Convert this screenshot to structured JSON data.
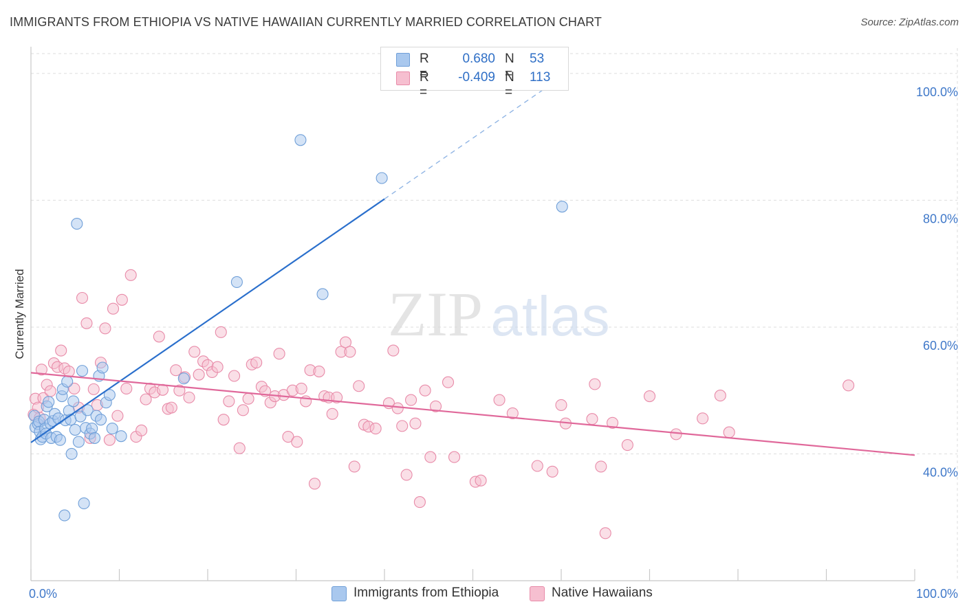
{
  "header": {
    "title": "IMMIGRANTS FROM ETHIOPIA VS NATIVE HAWAIIAN CURRENTLY MARRIED CORRELATION CHART",
    "source": "Source: ZipAtlas.com"
  },
  "watermark": {
    "zip": "ZIP",
    "atlas": "atlas"
  },
  "legend": {
    "r_label": "R =",
    "n_label": "N =",
    "series1": {
      "r": "0.680",
      "n": "53"
    },
    "series2": {
      "r": "-0.409",
      "n": "113"
    }
  },
  "colors": {
    "blue_fill": "#a9c8ee",
    "blue_stroke": "#6f9fd8",
    "blue_line": "#2a6fcc",
    "pink_fill": "#f6bfd0",
    "pink_stroke": "#e88aa8",
    "pink_line": "#e0689a",
    "tick_label": "#3f78c9",
    "grid": "#dddddd"
  },
  "chart_data": {
    "type": "scatter",
    "title": "IMMIGRANTS FROM ETHIOPIA VS NATIVE HAWAIIAN CURRENTLY MARRIED CORRELATION CHART",
    "xlabel": "",
    "ylabel": "Currently Married",
    "xlim": [
      0,
      100
    ],
    "ylim": [
      20,
      104
    ],
    "x_tick_labels": [
      "0.0%",
      "100.0%"
    ],
    "y_ticks": [
      40,
      60,
      80,
      100
    ],
    "y_tick_labels": [
      "40.0%",
      "60.0%",
      "80.0%",
      "100.0%"
    ],
    "legend_position": "top-center",
    "series": [
      {
        "name": "Immigrants from Ethiopia",
        "r": 0.68,
        "n": 53,
        "trend": {
          "x0": 0,
          "y0": 41.8,
          "x1": 40,
          "y1": 80.2,
          "dashed_to_x": 60
        },
        "points": [
          [
            0.4,
            46
          ],
          [
            0.5,
            44.2
          ],
          [
            0.8,
            44.7
          ],
          [
            0.9,
            45.1
          ],
          [
            1.0,
            43.5
          ],
          [
            1.1,
            42.3
          ],
          [
            1.3,
            42.7
          ],
          [
            1.5,
            45.4
          ],
          [
            1.6,
            44.0
          ],
          [
            1.7,
            43.2
          ],
          [
            1.8,
            47.5
          ],
          [
            2.0,
            48.2
          ],
          [
            2.2,
            44.8
          ],
          [
            2.3,
            42.5
          ],
          [
            2.5,
            45.2
          ],
          [
            2.7,
            46.3
          ],
          [
            2.9,
            42.7
          ],
          [
            3.1,
            45.6
          ],
          [
            3.3,
            42.2
          ],
          [
            3.5,
            49.1
          ],
          [
            3.6,
            50.2
          ],
          [
            3.8,
            30.3
          ],
          [
            3.9,
            45.3
          ],
          [
            4.1,
            51.4
          ],
          [
            4.3,
            46.8
          ],
          [
            4.5,
            45.4
          ],
          [
            4.6,
            40.0
          ],
          [
            4.8,
            48.3
          ],
          [
            5.0,
            43.8
          ],
          [
            5.2,
            76.3
          ],
          [
            5.4,
            41.9
          ],
          [
            5.6,
            45.9
          ],
          [
            5.8,
            53.1
          ],
          [
            6.0,
            32.2
          ],
          [
            6.2,
            44.1
          ],
          [
            6.4,
            46.9
          ],
          [
            6.7,
            43.2
          ],
          [
            6.9,
            44.0
          ],
          [
            7.2,
            42.5
          ],
          [
            7.4,
            46.0
          ],
          [
            7.7,
            52.3
          ],
          [
            7.9,
            45.4
          ],
          [
            8.1,
            53.6
          ],
          [
            8.5,
            48.1
          ],
          [
            8.9,
            49.3
          ],
          [
            9.2,
            44.0
          ],
          [
            10.2,
            42.8
          ],
          [
            17.3,
            51.9
          ],
          [
            23.3,
            67.1
          ],
          [
            30.5,
            89.5
          ],
          [
            33.0,
            65.2
          ],
          [
            39.7,
            83.5
          ],
          [
            60.1,
            79.0
          ]
        ]
      },
      {
        "name": "Native Hawaiians",
        "r": -0.409,
        "n": 113,
        "trend": {
          "x0": 0,
          "y0": 52.8,
          "x1": 100,
          "y1": 39.8
        },
        "points": [
          [
            0.3,
            46.2
          ],
          [
            0.5,
            48.7
          ],
          [
            0.8,
            47.3
          ],
          [
            1.0,
            45.7
          ],
          [
            1.2,
            53.3
          ],
          [
            1.4,
            48.8
          ],
          [
            1.8,
            50.9
          ],
          [
            2.2,
            49.9
          ],
          [
            2.6,
            54.3
          ],
          [
            3.0,
            53.7
          ],
          [
            3.4,
            56.3
          ],
          [
            3.8,
            53.5
          ],
          [
            4.3,
            53.0
          ],
          [
            4.9,
            50.3
          ],
          [
            5.4,
            47.3
          ],
          [
            5.8,
            64.6
          ],
          [
            6.3,
            60.6
          ],
          [
            6.7,
            42.5
          ],
          [
            7.1,
            50.2
          ],
          [
            7.5,
            47.7
          ],
          [
            7.9,
            54.4
          ],
          [
            8.4,
            59.8
          ],
          [
            8.9,
            42.2
          ],
          [
            9.3,
            62.9
          ],
          [
            9.8,
            46.0
          ],
          [
            10.3,
            64.3
          ],
          [
            10.8,
            50.3
          ],
          [
            11.3,
            68.2
          ],
          [
            11.9,
            42.7
          ],
          [
            12.5,
            43.7
          ],
          [
            13.0,
            48.6
          ],
          [
            13.5,
            50.3
          ],
          [
            14.0,
            49.7
          ],
          [
            14.5,
            58.5
          ],
          [
            14.9,
            50.1
          ],
          [
            15.5,
            47.1
          ],
          [
            15.9,
            47.3
          ],
          [
            16.4,
            53.2
          ],
          [
            16.8,
            50.0
          ],
          [
            17.4,
            52.1
          ],
          [
            17.9,
            48.9
          ],
          [
            18.5,
            56.1
          ],
          [
            19.0,
            52.5
          ],
          [
            19.5,
            54.6
          ],
          [
            20.0,
            54.0
          ],
          [
            20.5,
            52.9
          ],
          [
            21.1,
            53.7
          ],
          [
            21.5,
            59.2
          ],
          [
            21.8,
            45.4
          ],
          [
            22.4,
            48.3
          ],
          [
            23.0,
            52.3
          ],
          [
            23.6,
            40.9
          ],
          [
            24.0,
            46.9
          ],
          [
            24.6,
            48.7
          ],
          [
            25.0,
            54.1
          ],
          [
            25.5,
            54.4
          ],
          [
            26.1,
            50.6
          ],
          [
            26.5,
            49.9
          ],
          [
            27.1,
            48.1
          ],
          [
            27.6,
            49.1
          ],
          [
            28.1,
            55.8
          ],
          [
            28.6,
            49.3
          ],
          [
            29.1,
            42.7
          ],
          [
            29.6,
            50.0
          ],
          [
            30.1,
            41.9
          ],
          [
            30.6,
            50.3
          ],
          [
            31.1,
            48.3
          ],
          [
            31.6,
            53.2
          ],
          [
            32.1,
            35.3
          ],
          [
            32.6,
            53.0
          ],
          [
            33.2,
            49.1
          ],
          [
            33.7,
            48.9
          ],
          [
            34.1,
            46.3
          ],
          [
            34.6,
            48.9
          ],
          [
            35.1,
            56.1
          ],
          [
            35.6,
            57.6
          ],
          [
            36.1,
            56.1
          ],
          [
            36.6,
            38.0
          ],
          [
            37.1,
            50.7
          ],
          [
            37.7,
            44.6
          ],
          [
            38.2,
            44.3
          ],
          [
            39.0,
            44.0
          ],
          [
            40.5,
            48.0
          ],
          [
            41.0,
            56.3
          ],
          [
            41.5,
            47.2
          ],
          [
            42.0,
            44.4
          ],
          [
            42.5,
            36.7
          ],
          [
            43.0,
            48.5
          ],
          [
            43.5,
            44.8
          ],
          [
            44.0,
            32.4
          ],
          [
            44.6,
            50.0
          ],
          [
            45.2,
            39.5
          ],
          [
            45.8,
            47.5
          ],
          [
            47.2,
            51.3
          ],
          [
            47.9,
            39.5
          ],
          [
            50.3,
            35.6
          ],
          [
            50.9,
            35.8
          ],
          [
            53.0,
            48.5
          ],
          [
            54.5,
            46.4
          ],
          [
            57.3,
            38.1
          ],
          [
            59.0,
            37.2
          ],
          [
            60.0,
            47.7
          ],
          [
            60.5,
            44.8
          ],
          [
            63.5,
            45.5
          ],
          [
            63.8,
            51.0
          ],
          [
            64.5,
            38.0
          ],
          [
            65.0,
            27.5
          ],
          [
            65.8,
            44.9
          ],
          [
            67.5,
            41.4
          ],
          [
            70.0,
            49.1
          ],
          [
            73.0,
            43.1
          ],
          [
            76.0,
            45.6
          ],
          [
            78.0,
            49.2
          ],
          [
            79.0,
            43.4
          ],
          [
            92.5,
            50.8
          ]
        ]
      }
    ]
  },
  "bottom_legend": {
    "series1_label": "Immigrants from Ethiopia",
    "series2_label": "Native Hawaiians"
  }
}
